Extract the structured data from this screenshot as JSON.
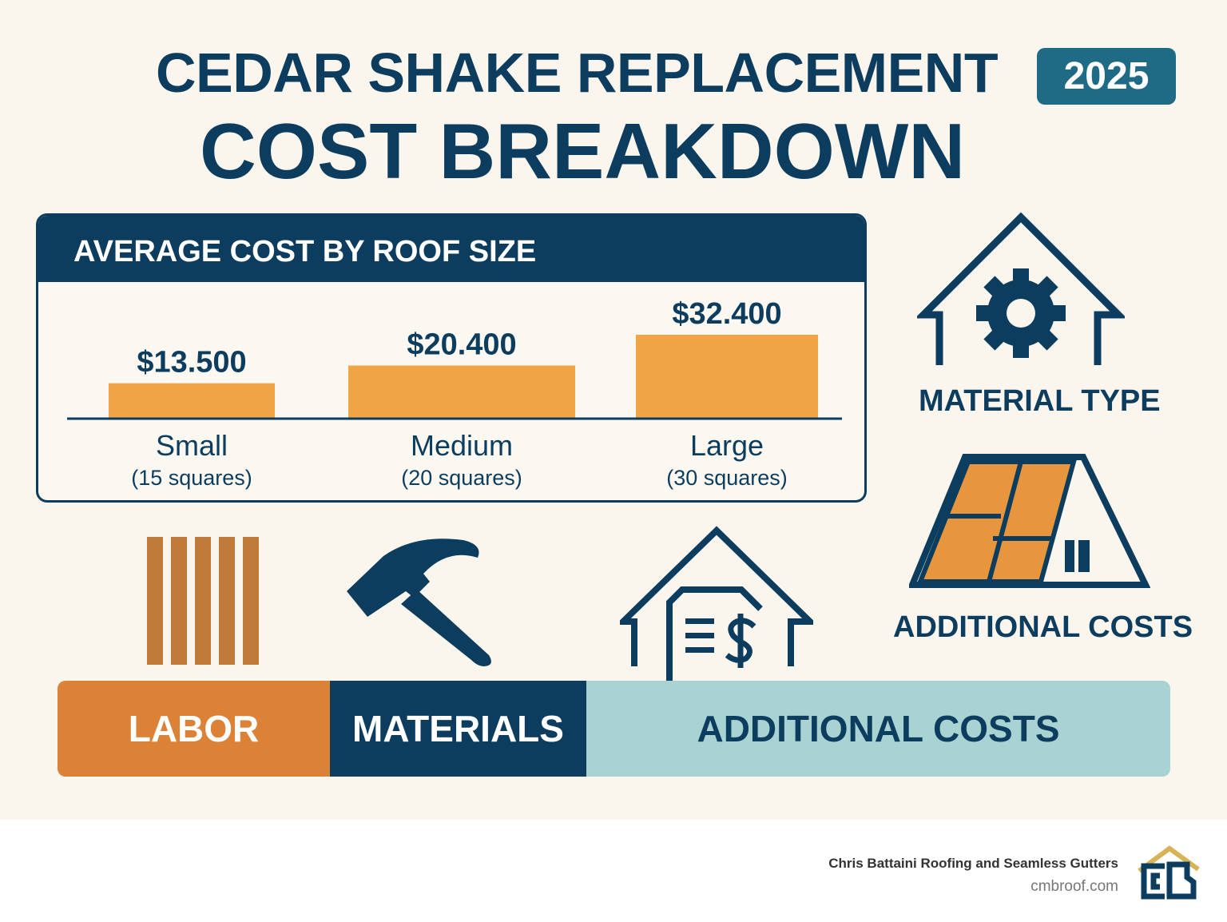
{
  "header": {
    "title_line1": "CEDAR SHAKE REPLACEMENT",
    "year_badge": "2025",
    "title_line2": "COST BREAKDOWN"
  },
  "panel": {
    "title": "AVERAGE COST BY ROOF SIZE"
  },
  "chart_data": {
    "type": "bar",
    "title": "AVERAGE COST BY ROOF SIZE",
    "categories": [
      "Small",
      "Medium",
      "Large"
    ],
    "category_subtitles": [
      "(15 squares)",
      "(20 squares)",
      "(30 squares)"
    ],
    "values": [
      13500,
      20400,
      32400
    ],
    "data_labels": [
      "$13.500",
      "$20.400",
      "$32.400"
    ],
    "bar_color": "#f0a445",
    "grid": false
  },
  "side": {
    "material_type": "MATERIAL TYPE",
    "additional_costs": "ADDITIONAL COSTS"
  },
  "icons": [
    "house-gear-icon",
    "roof-shingles-icon",
    "wood-planks-icon",
    "hammer-icon",
    "house-invoice-dollar-icon",
    "company-logo"
  ],
  "categories_bar": [
    {
      "label": "LABOR",
      "color": "#dc8236"
    },
    {
      "label": "MATERIALS",
      "color": "#0d3d5e"
    },
    {
      "label": "ADDITIONAL COSTS",
      "color": "#a9d3d3"
    }
  ],
  "footer": {
    "company": "Chris Battaini Roofing and Seamless Gutters",
    "website": "cmbroof.com",
    "logo_text": "CB"
  }
}
